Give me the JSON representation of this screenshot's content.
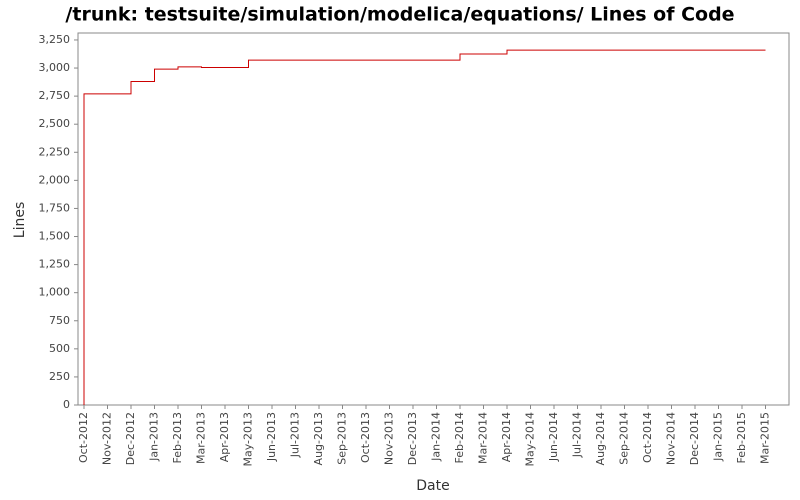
{
  "chart_data": {
    "type": "line",
    "step": true,
    "title": "/trunk: testsuite/simulation/modelica/equations/ Lines of Code",
    "x_label": "Date",
    "y_label": "Lines",
    "x": [
      "2012-10",
      "2012-10",
      "2012-12",
      "2012-12",
      "2013-01",
      "2013-01",
      "2013-02",
      "2013-03",
      "2013-05",
      "2014-02",
      "2014-04",
      "2015-03"
    ],
    "values": [
      0,
      2770,
      2810,
      2880,
      2920,
      2990,
      3010,
      3005,
      3070,
      3125,
      3160,
      3160
    ],
    "color": "#cc0000",
    "xlim": [
      "2012-10",
      "2015-04"
    ],
    "xticks": [
      {
        "value": "2012-10",
        "label": "Oct-2012"
      },
      {
        "value": "2012-11",
        "label": "Nov-2012"
      },
      {
        "value": "2012-12",
        "label": "Dec-2012"
      },
      {
        "value": "2013-01",
        "label": "Jan-2013"
      },
      {
        "value": "2013-02",
        "label": "Feb-2013"
      },
      {
        "value": "2013-03",
        "label": "Mar-2013"
      },
      {
        "value": "2013-04",
        "label": "Apr-2013"
      },
      {
        "value": "2013-05",
        "label": "May-2013"
      },
      {
        "value": "2013-06",
        "label": "Jun-2013"
      },
      {
        "value": "2013-07",
        "label": "Jul-2013"
      },
      {
        "value": "2013-08",
        "label": "Aug-2013"
      },
      {
        "value": "2013-09",
        "label": "Sep-2013"
      },
      {
        "value": "2013-10",
        "label": "Oct-2013"
      },
      {
        "value": "2013-11",
        "label": "Nov-2013"
      },
      {
        "value": "2013-12",
        "label": "Dec-2013"
      },
      {
        "value": "2014-01",
        "label": "Jan-2014"
      },
      {
        "value": "2014-02",
        "label": "Feb-2014"
      },
      {
        "value": "2014-03",
        "label": "Mar-2014"
      },
      {
        "value": "2014-04",
        "label": "Apr-2014"
      },
      {
        "value": "2014-05",
        "label": "May-2014"
      },
      {
        "value": "2014-06",
        "label": "Jun-2014"
      },
      {
        "value": "2014-07",
        "label": "Jul-2014"
      },
      {
        "value": "2014-08",
        "label": "Aug-2014"
      },
      {
        "value": "2014-09",
        "label": "Sep-2014"
      },
      {
        "value": "2014-10",
        "label": "Oct-2014"
      },
      {
        "value": "2014-11",
        "label": "Nov-2014"
      },
      {
        "value": "2014-12",
        "label": "Dec-2014"
      },
      {
        "value": "2015-01",
        "label": "Jan-2015"
      },
      {
        "value": "2015-02",
        "label": "Feb-2015"
      },
      {
        "value": "2015-03",
        "label": "Mar-2015"
      }
    ],
    "ylim": [
      0,
      3312
    ],
    "yticks": [
      0,
      250,
      500,
      750,
      {
        "value": 1000,
        "label": "1,000"
      },
      {
        "value": 1250,
        "label": "1,250"
      },
      {
        "value": 1500,
        "label": "1,500"
      },
      {
        "value": 1750,
        "label": "1,750"
      },
      {
        "value": 2000,
        "label": "2,000"
      },
      {
        "value": 2250,
        "label": "2,250"
      },
      {
        "value": 2500,
        "label": "2,500"
      },
      {
        "value": 2750,
        "label": "2,750"
      },
      {
        "value": 3000,
        "label": "3,000"
      },
      {
        "value": 3250,
        "label": "3,250"
      }
    ],
    "grid": false
  }
}
